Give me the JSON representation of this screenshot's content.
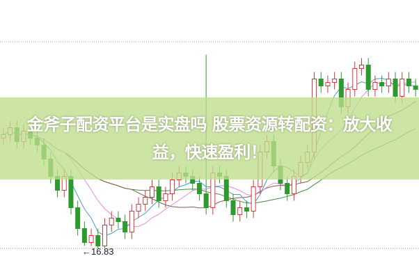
{
  "banner": {
    "line1": "金斧子配资平台是实盘吗 股票资源转配资：放大收",
    "line2": "益，快速盈利！"
  },
  "chart_data": {
    "type": "candlestick",
    "title": "",
    "ylim": [
      16.83,
      22.77
    ],
    "grid": "dotted top and bottom lines",
    "annotation": "←16.83",
    "low_value": 16.83,
    "colors": {
      "up": "#d9363e",
      "down": "#2e9a2e",
      "ma5": "#4a9fc0",
      "ma10": "#e48ae0",
      "ma20": "#8a5a4a",
      "ma30": "#3f8f3f"
    },
    "open": [
      20.0,
      20.1,
      20.3,
      19.9,
      20.2,
      20.0,
      19.8,
      19.4,
      18.9,
      18.5,
      18.9,
      18.0,
      17.4,
      17.0,
      17.2,
      16.9,
      17.5,
      17.7,
      17.6,
      17.3,
      17.9,
      18.1,
      18.3,
      18.6,
      18.2,
      18.4,
      18.8,
      19.0,
      18.9,
      18.7,
      18.4,
      18.0,
      19.0,
      18.9,
      18.2,
      17.8,
      18.0,
      17.9,
      18.6,
      19.6,
      19.9,
      19.2,
      18.7,
      18.4,
      18.9,
      19.3,
      19.6,
      21.7,
      21.5,
      21.6,
      21.7,
      20.9,
      21.4,
      22.0,
      22.1,
      21.4,
      21.6,
      21.5,
      21.7,
      21.2,
      21.7,
      21.5
    ],
    "high": [
      20.3,
      20.5,
      20.5,
      20.4,
      20.4,
      20.2,
      20.0,
      19.6,
      19.1,
      19.1,
      19.1,
      18.2,
      17.6,
      17.4,
      17.4,
      17.7,
      17.9,
      17.9,
      17.8,
      18.1,
      18.3,
      18.5,
      18.8,
      18.8,
      18.6,
      19.0,
      19.2,
      19.2,
      19.1,
      18.9,
      22.4,
      19.2,
      19.2,
      19.1,
      18.4,
      18.2,
      18.2,
      18.8,
      19.8,
      20.1,
      20.1,
      19.4,
      18.9,
      19.1,
      19.5,
      19.8,
      21.9,
      21.9,
      21.8,
      21.9,
      21.9,
      21.6,
      22.2,
      22.3,
      22.3,
      21.8,
      21.8,
      21.9,
      21.9,
      21.9,
      21.9,
      21.7
    ],
    "low": [
      19.8,
      19.9,
      19.7,
      19.7,
      19.8,
      19.6,
      19.2,
      18.7,
      18.3,
      18.3,
      17.8,
      17.2,
      16.9,
      16.9,
      16.83,
      16.85,
      17.3,
      17.4,
      17.1,
      17.1,
      17.7,
      17.9,
      18.1,
      18.0,
      18.0,
      18.2,
      18.6,
      18.7,
      18.5,
      18.2,
      17.8,
      17.8,
      18.7,
      18.0,
      17.6,
      17.6,
      17.7,
      17.7,
      18.4,
      19.4,
      19.0,
      18.5,
      18.2,
      18.2,
      18.7,
      19.1,
      19.4,
      21.3,
      21.3,
      21.4,
      20.7,
      20.7,
      21.2,
      21.8,
      21.2,
      21.2,
      21.3,
      21.3,
      21.0,
      21.0,
      21.3,
      21.2
    ],
    "close": [
      20.1,
      20.3,
      19.9,
      20.2,
      20.0,
      19.8,
      19.4,
      18.9,
      18.5,
      18.9,
      18.0,
      17.4,
      17.0,
      17.2,
      16.9,
      17.5,
      17.7,
      17.6,
      17.3,
      17.9,
      18.1,
      18.3,
      18.6,
      18.2,
      18.4,
      18.8,
      19.0,
      18.9,
      18.7,
      18.4,
      18.0,
      19.0,
      18.9,
      18.2,
      17.8,
      18.0,
      17.9,
      18.6,
      19.6,
      19.9,
      19.2,
      18.7,
      18.4,
      18.9,
      19.3,
      19.6,
      21.7,
      21.5,
      21.6,
      21.7,
      20.9,
      21.4,
      22.0,
      22.1,
      21.4,
      21.6,
      21.5,
      21.7,
      21.2,
      21.7,
      21.5,
      21.4
    ]
  }
}
